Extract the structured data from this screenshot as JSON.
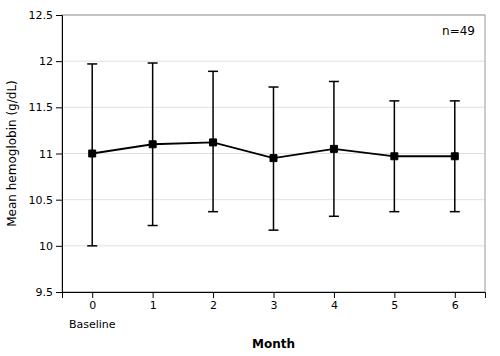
{
  "chart_data": {
    "type": "line",
    "x": [
      0,
      1,
      2,
      3,
      4,
      5,
      6
    ],
    "values": [
      11.0,
      11.1,
      11.12,
      10.95,
      11.05,
      10.97,
      10.97
    ],
    "error_upper": [
      0.97,
      0.88,
      0.77,
      0.77,
      0.73,
      0.6,
      0.6
    ],
    "error_lower": [
      1.0,
      0.88,
      0.75,
      0.78,
      0.73,
      0.6,
      0.6
    ],
    "color": "#000000",
    "marker": "square",
    "xlim": [
      -0.5,
      6.5
    ],
    "xticks": [
      0,
      1,
      2,
      3,
      4,
      5,
      6
    ],
    "ylim": [
      9.5,
      12.5
    ],
    "yticks": [
      9.5,
      10,
      10.5,
      11,
      11.5,
      12,
      12.5
    ],
    "xlabel": "Month",
    "ylabel": "Mean hemoglobin (g/dL)",
    "grid": true,
    "annotations": [
      {
        "text": "n=49"
      },
      {
        "text": "Baseline",
        "x": 0
      }
    ]
  }
}
